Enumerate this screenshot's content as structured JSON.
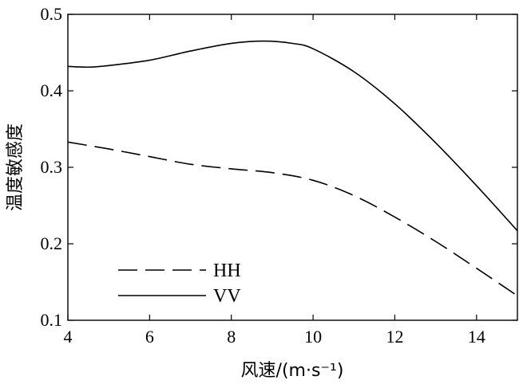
{
  "chart_data": {
    "type": "line",
    "title": "",
    "xlabel": "风速/(m·s⁻¹)",
    "ylabel": "温度敏感度",
    "xlim": [
      4,
      15
    ],
    "ylim": [
      0.1,
      0.5
    ],
    "xticks": [
      "4",
      "6",
      "8",
      "10",
      "12",
      "14"
    ],
    "yticks": [
      "0.1",
      "0.2",
      "0.3",
      "0.4",
      "0.5"
    ],
    "grid": false,
    "legend_position": "bottom-left",
    "series": [
      {
        "name": "HH",
        "line_style": "dashed",
        "color": "#000000",
        "x": [
          4,
          5,
          6,
          7,
          8,
          9,
          10,
          11,
          12,
          13,
          14,
          15
        ],
        "y": [
          0.333,
          0.324,
          0.314,
          0.304,
          0.298,
          0.293,
          0.283,
          0.263,
          0.235,
          0.203,
          0.168,
          0.132
        ]
      },
      {
        "name": "VV",
        "line_style": "solid",
        "color": "#000000",
        "x": [
          4,
          4.5,
          5,
          6,
          7,
          8,
          8.8,
          9.5,
          10,
          11,
          12,
          13,
          14,
          15
        ],
        "y": [
          0.432,
          0.431,
          0.433,
          0.44,
          0.452,
          0.462,
          0.465,
          0.462,
          0.455,
          0.425,
          0.383,
          0.332,
          0.276,
          0.217
        ]
      }
    ]
  }
}
